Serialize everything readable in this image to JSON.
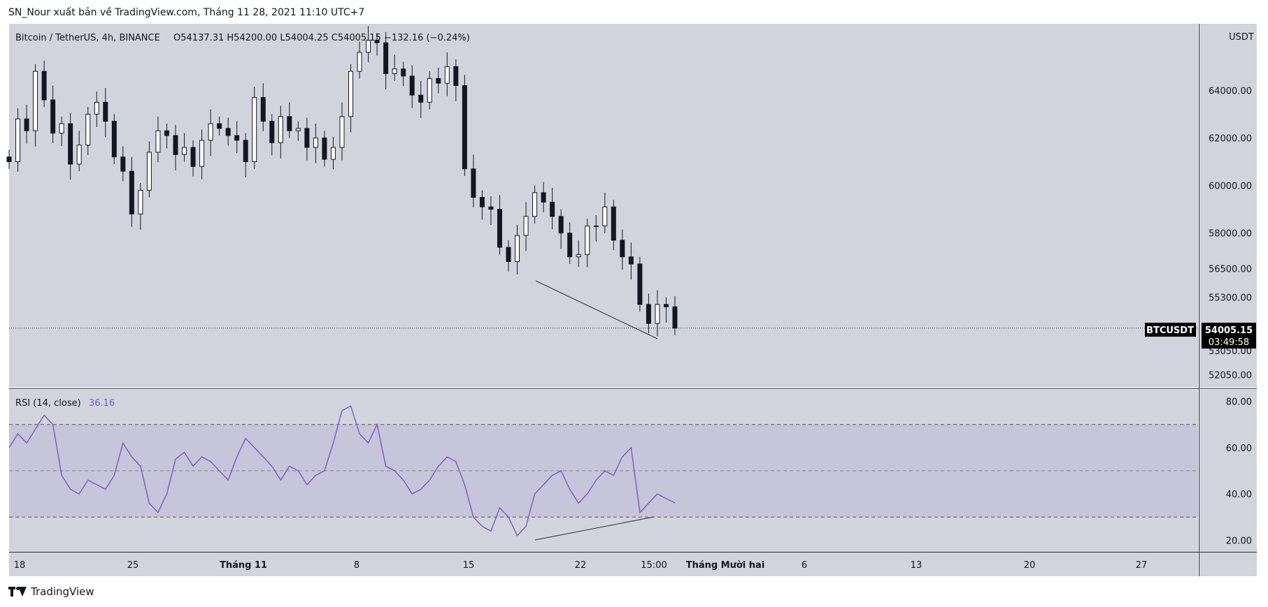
{
  "header": {
    "publish_line": "SN_Nour xuất bản về TradingView.com, Tháng 11 28, 2021 11:10 UTC+7"
  },
  "legend": {
    "symbol": "Bitcoin / TetherUS, 4h, BINANCE",
    "ohlc": "O54137.31  H54200.00  L54004.25  C54005.15  −132.16 (−0.24%)"
  },
  "rsi_legend": {
    "label": "RSI (14, close)",
    "value": "36.16"
  },
  "price_axis": {
    "currency": "USDT",
    "ticks": [
      "64000.00",
      "62000.00",
      "60000.00",
      "58000.00",
      "56500.00",
      "55300.00",
      "53050.00",
      "52050.00"
    ]
  },
  "price_tag": {
    "symbol": "BTCUSDT",
    "price": "54005.15",
    "countdown": "03:49:58"
  },
  "rsi_axis": {
    "ticks": [
      "80.00",
      "60.00",
      "40.00",
      "20.00"
    ]
  },
  "time_axis": {
    "labels": [
      "18",
      "25",
      "Tháng 11",
      "8",
      "15",
      "22",
      "15:00",
      "Tháng Mười hai",
      "6",
      "13",
      "20",
      "27"
    ]
  },
  "footer": {
    "brand": "TradingView"
  },
  "colors": {
    "pane_bg": "#d1d4dc",
    "candle": "#131722",
    "rsi_line": "#7e57c2",
    "rsi_band": "rgba(126,87,194,0.12)",
    "rsi_text": "#7e57c2"
  },
  "chart_data": [
    {
      "type": "candlestick",
      "series": [
        {
          "name": "Bitcoin / TetherUS, 4h, BINANCE",
          "y": [
            61000,
            62800,
            62300,
            64800,
            63600,
            62200,
            62600,
            60900,
            61700,
            63000,
            63500,
            62700,
            61200,
            60600,
            58800,
            59800,
            61400,
            62300,
            62100,
            61300,
            61600,
            60800,
            61900,
            62600,
            62400,
            62100,
            61900,
            61000,
            63700,
            62700,
            61800,
            62900,
            62300,
            62400,
            61600,
            62000,
            61100,
            61600,
            62900,
            64800,
            65600,
            66100,
            66000,
            64700,
            64900,
            64600,
            63800,
            63500,
            64500,
            64300,
            65000,
            64200,
            60700,
            59500,
            59100,
            59000,
            57400,
            56800,
            57900,
            58700,
            59700,
            59300,
            58700,
            58000,
            57000,
            57100,
            58300,
            58300,
            59100,
            57700,
            57000,
            56700,
            55000,
            54200,
            55000,
            54900,
            54005
          ]
        }
      ],
      "ylim": [
        51500,
        66800
      ],
      "ticks": [
        64000,
        62000,
        60000,
        58000,
        56500,
        55300,
        53050,
        52050
      ],
      "last_price": 54005.15,
      "annotations": [
        "trendline lower lows (price)"
      ]
    },
    {
      "type": "line",
      "series": [
        {
          "name": "RSI (14, close)",
          "y": [
            60,
            66,
            62,
            68,
            74,
            70,
            48,
            42,
            40,
            46,
            44,
            42,
            48,
            62,
            56,
            52,
            36,
            32,
            40,
            55,
            58,
            52,
            56,
            54,
            50,
            46,
            56,
            64,
            60,
            56,
            52,
            46,
            52,
            50,
            44,
            48,
            50,
            62,
            76,
            78,
            66,
            62,
            70,
            52,
            50,
            46,
            40,
            42,
            46,
            52,
            56,
            54,
            44,
            30,
            26,
            24,
            34,
            30,
            22,
            26,
            40,
            44,
            48,
            50,
            42,
            36,
            40,
            46,
            50,
            48,
            56,
            60,
            32,
            36,
            40,
            38,
            36.16
          ]
        }
      ],
      "ylim": [
        15,
        85
      ],
      "ticks": [
        80,
        60,
        40,
        20
      ],
      "band": [
        30,
        70
      ],
      "midline": 50,
      "annotations": [
        "trendline higher lows (RSI)"
      ]
    }
  ]
}
